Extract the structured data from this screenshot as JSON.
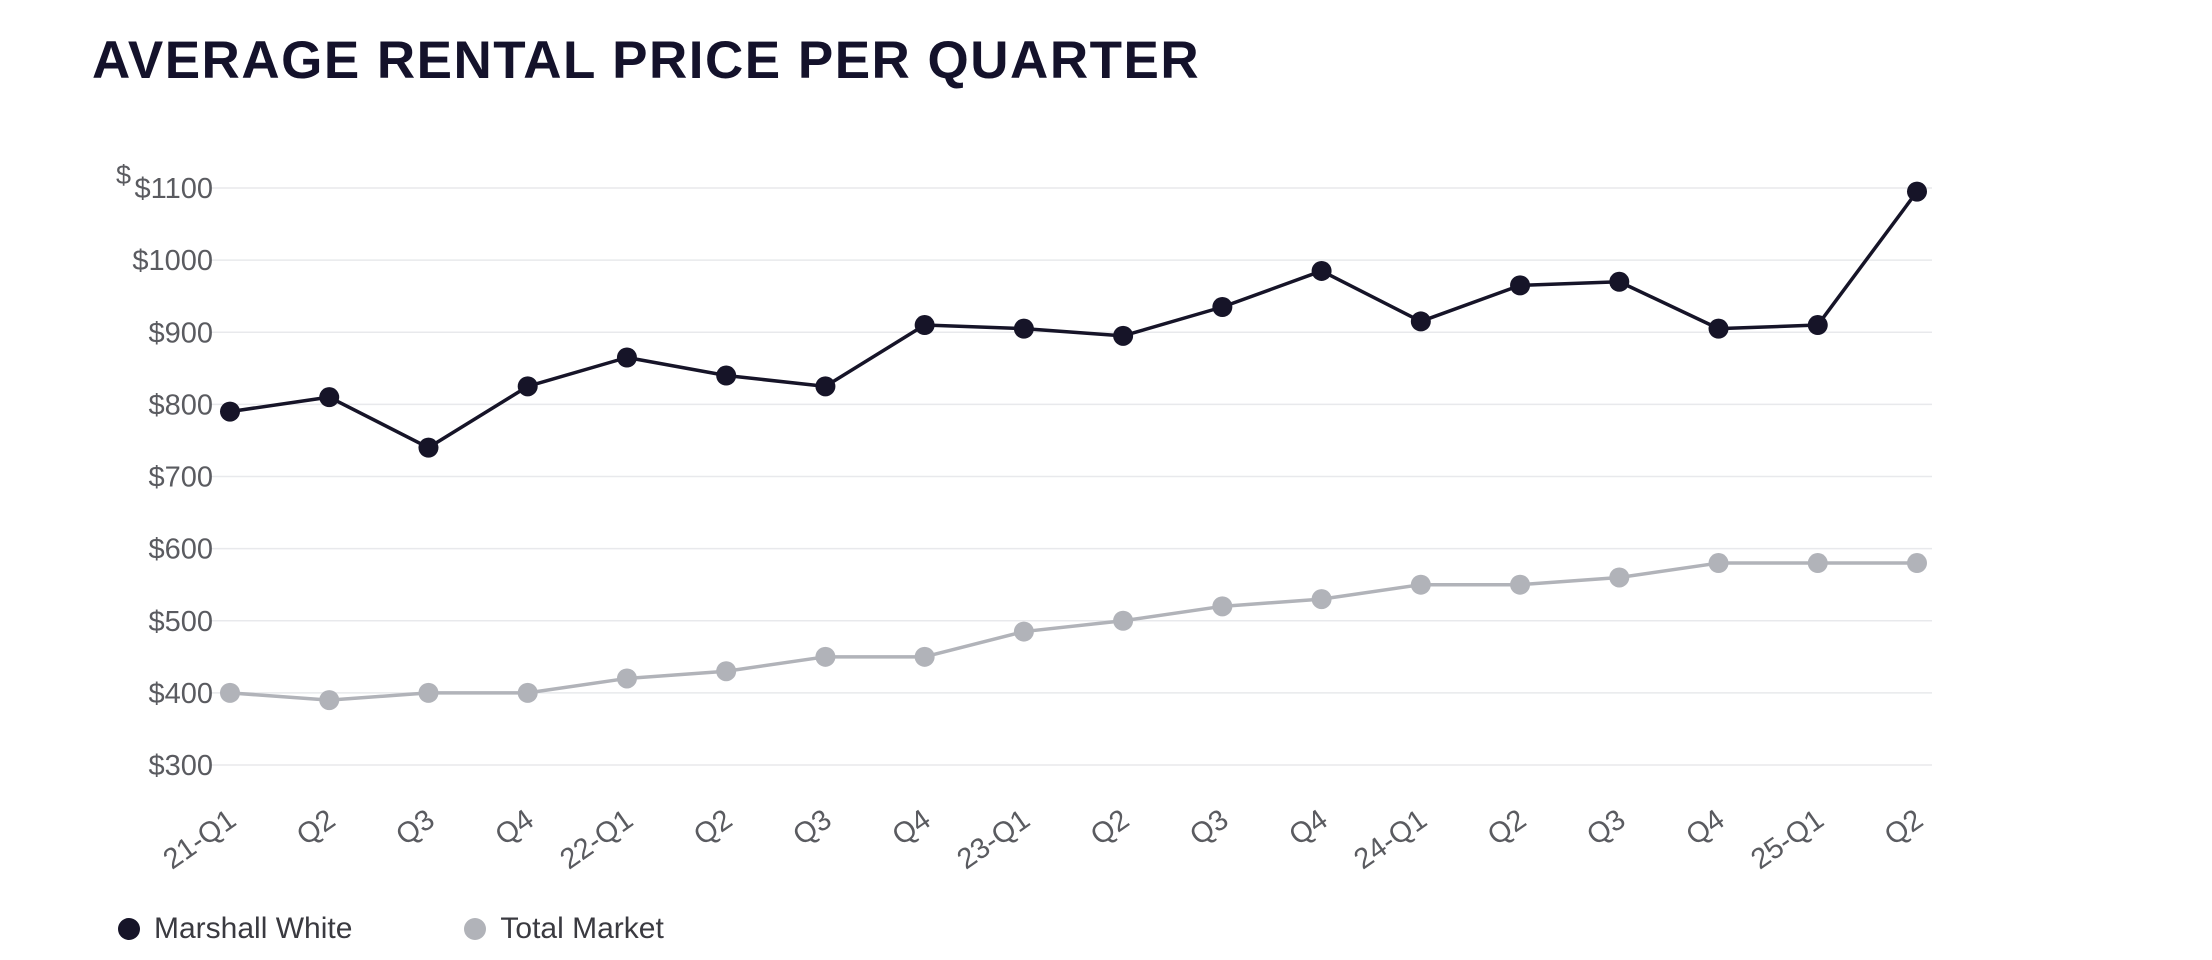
{
  "title": "AVERAGE RENTAL PRICE PER QUARTER",
  "chart_data": {
    "type": "line",
    "title": "AVERAGE RENTAL PRICE PER QUARTER",
    "categories": [
      "21-Q1",
      "Q2",
      "Q3",
      "Q4",
      "22-Q1",
      "Q2",
      "Q3",
      "Q4",
      "23-Q1",
      "Q2",
      "Q3",
      "Q4",
      "24-Q1",
      "Q2",
      "Q3",
      "Q4",
      "25-Q1",
      "Q2"
    ],
    "series": [
      {
        "name": "Marshall White",
        "color": "#161428",
        "values": [
          790,
          810,
          740,
          825,
          865,
          840,
          825,
          910,
          905,
          895,
          935,
          985,
          915,
          965,
          970,
          905,
          910,
          1095
        ]
      },
      {
        "name": "Total Market",
        "color": "#b1b3b9",
        "values": [
          400,
          390,
          400,
          400,
          420,
          430,
          450,
          450,
          485,
          500,
          520,
          530,
          550,
          550,
          560,
          580,
          580,
          580
        ]
      }
    ],
    "y_ticks": [
      1100,
      1000,
      900,
      800,
      700,
      600,
      500,
      400,
      300
    ],
    "y_tick_prefix": "$",
    "y_axis_unit": "$",
    "ylim": [
      300,
      1100
    ],
    "x_tick_rotation": -35,
    "grid": "horizontal",
    "legend_position": "bottom-left"
  }
}
